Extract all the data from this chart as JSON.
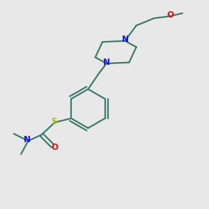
{
  "bg_color": "#e8e8e8",
  "bond_color": "#3a7a6a",
  "N_color": "#1010ee",
  "O_color": "#ee1010",
  "S_color": "#b8b800",
  "line_width": 1.6,
  "figsize": [
    3.0,
    3.0
  ],
  "dpi": 100,
  "xlim": [
    0,
    10
  ],
  "ylim": [
    0,
    10
  ]
}
